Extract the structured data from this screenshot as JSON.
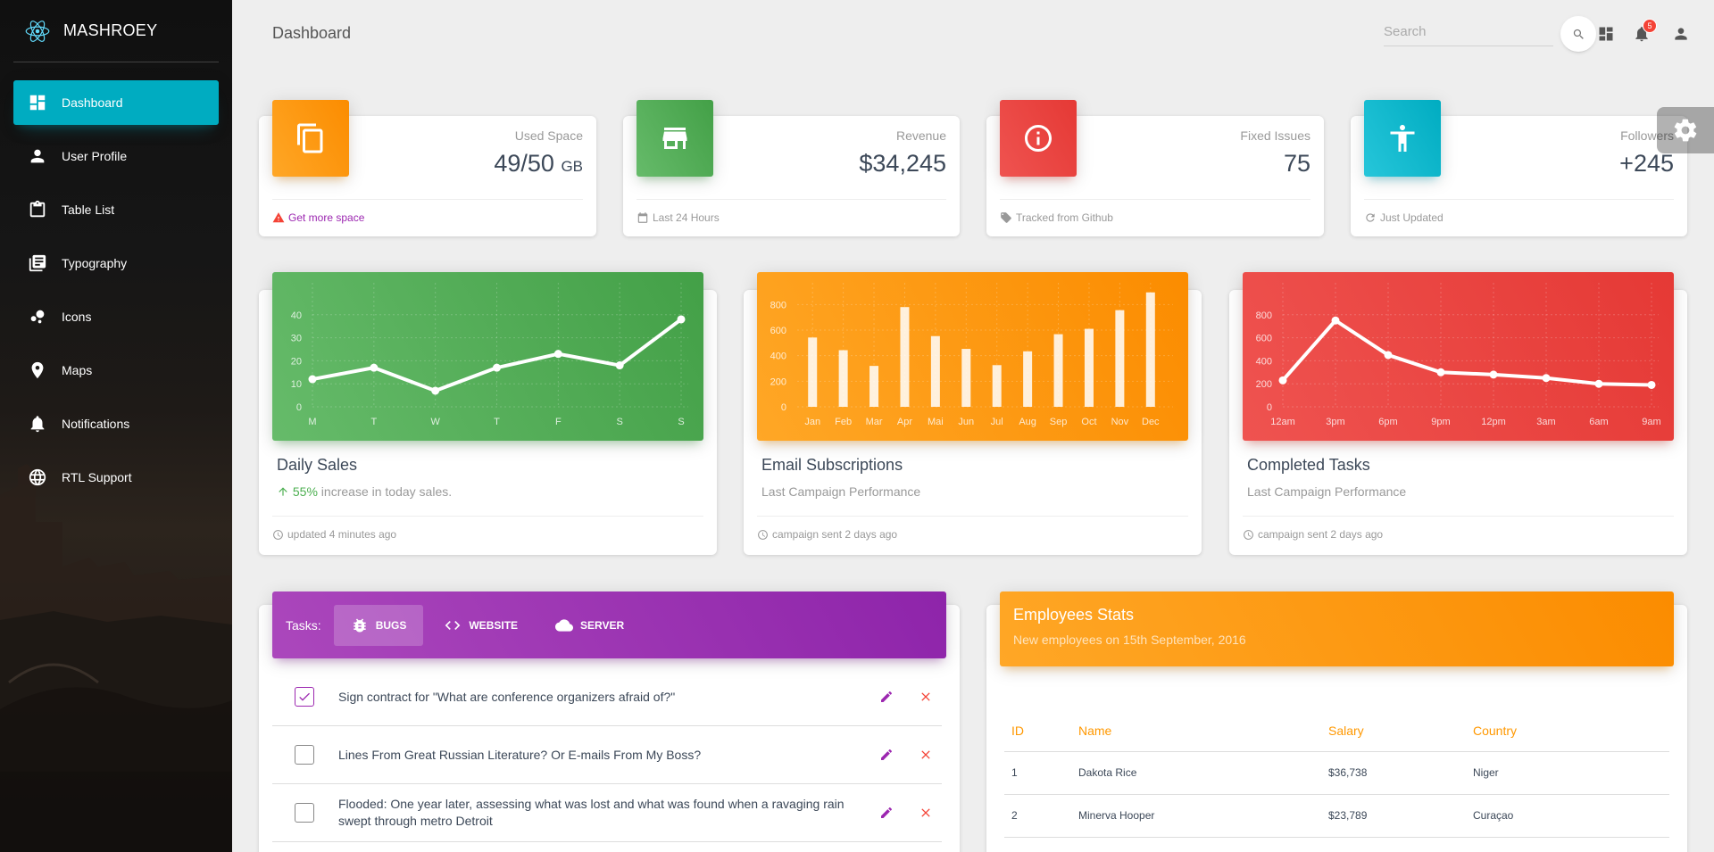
{
  "brand": {
    "name": "MASHROEY"
  },
  "sidebar": {
    "items": [
      {
        "label": "Dashboard",
        "icon": "dashboard-icon",
        "active": true
      },
      {
        "label": "User Profile",
        "icon": "person-icon"
      },
      {
        "label": "Table List",
        "icon": "clipboard-icon"
      },
      {
        "label": "Typography",
        "icon": "library-books-icon"
      },
      {
        "label": "Icons",
        "icon": "bubble-chart-icon"
      },
      {
        "label": "Maps",
        "icon": "location-pin-icon"
      },
      {
        "label": "Notifications",
        "icon": "bell-icon"
      },
      {
        "label": "RTL Support",
        "icon": "language-globe-icon"
      }
    ]
  },
  "header": {
    "title": "Dashboard",
    "search_placeholder": "Search",
    "notification_count": "5"
  },
  "stats": [
    {
      "category": "Used Space",
      "value": "49/50",
      "unit": "GB",
      "footer": "Get more space",
      "icon": "content-copy-icon",
      "color": "#fb8c00"
    },
    {
      "category": "Revenue",
      "value": "$34,245",
      "unit": "",
      "footer": "Last 24 Hours",
      "icon": "store-icon",
      "color": "#43a047"
    },
    {
      "category": "Fixed Issues",
      "value": "75",
      "unit": "",
      "footer": "Tracked from Github",
      "icon": "info-outline-icon",
      "color": "#e53935"
    },
    {
      "category": "Followers",
      "value": "+245",
      "unit": "",
      "footer": "Just Updated",
      "icon": "accessibility-icon",
      "color": "#00acc1"
    }
  ],
  "charts": [
    {
      "title": "Daily Sales",
      "sub_prefix": "55%",
      "sub_rest": " increase in today sales.",
      "footer": "updated 4 minutes ago",
      "color": "#4caf50"
    },
    {
      "title": "Email Subscriptions",
      "sub": "Last Campaign Performance",
      "footer": "campaign sent 2 days ago",
      "color": "#ff9800"
    },
    {
      "title": "Completed Tasks",
      "sub": "Last Campaign Performance",
      "footer": "campaign sent 2 days ago",
      "color": "#f44336"
    }
  ],
  "chart_data": [
    {
      "type": "line",
      "categories": [
        "M",
        "T",
        "W",
        "T",
        "F",
        "S",
        "S"
      ],
      "values": [
        12,
        17,
        7,
        17,
        23,
        18,
        38
      ],
      "yticks": [
        0,
        10,
        20,
        30,
        40
      ],
      "ylim": [
        0,
        50
      ],
      "grid": true
    },
    {
      "type": "bar",
      "categories": [
        "Jan",
        "Feb",
        "Mar",
        "Apr",
        "Mai",
        "Jun",
        "Jul",
        "Aug",
        "Sep",
        "Oct",
        "Nov",
        "Dec"
      ],
      "values": [
        542,
        443,
        320,
        780,
        553,
        453,
        326,
        434,
        568,
        610,
        756,
        895
      ],
      "yticks": [
        0,
        200,
        400,
        600,
        800
      ],
      "ylim": [
        0,
        900
      ],
      "grid": true
    },
    {
      "type": "line",
      "categories": [
        "12am",
        "3pm",
        "6pm",
        "9pm",
        "12pm",
        "3am",
        "6am",
        "9am"
      ],
      "values": [
        230,
        750,
        450,
        300,
        280,
        250,
        200,
        190
      ],
      "yticks": [
        0,
        200,
        400,
        600,
        800
      ],
      "ylim": [
        0,
        1000
      ],
      "grid": true
    }
  ],
  "tasks": {
    "label": "Tasks:",
    "tabs": [
      {
        "label": "BUGS",
        "icon": "bug-icon",
        "active": true
      },
      {
        "label": "WEBSITE",
        "icon": "code-icon"
      },
      {
        "label": "SERVER",
        "icon": "cloud-icon"
      }
    ],
    "items": [
      {
        "text": "Sign contract for \"What are conference organizers afraid of?\"",
        "checked": true
      },
      {
        "text": "Lines From Great Russian Literature? Or E-mails From My Boss?",
        "checked": false
      },
      {
        "text": "Flooded: One year later, assessing what was lost and what was found when a ravaging rain swept through metro Detroit",
        "checked": false
      }
    ]
  },
  "employees": {
    "title": "Employees Stats",
    "subtitle": "New employees on 15th September, 2016",
    "columns": [
      "ID",
      "Name",
      "Salary",
      "Country"
    ],
    "rows": [
      [
        "1",
        "Dakota Rice",
        "$36,738",
        "Niger"
      ],
      [
        "2",
        "Minerva Hooper",
        "$23,789",
        "Curaçao"
      ]
    ]
  },
  "colors": {
    "accent": "#00acc1",
    "purple": "#9c27b0",
    "orange": "#ff9800",
    "green": "#4caf50",
    "red": "#f44336"
  }
}
